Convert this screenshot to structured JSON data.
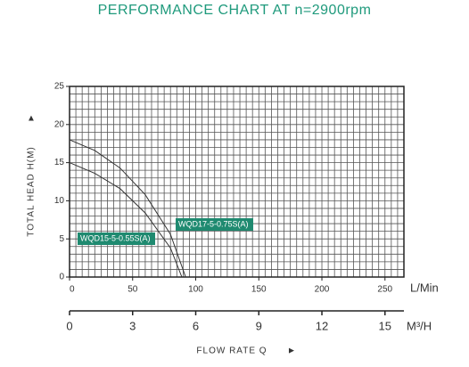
{
  "chart_data": {
    "type": "line",
    "title": "PERFORMANCE CHART AT n=2900rpm",
    "y_label": "TOTAL HEAD H(M)",
    "x_label": "L/Min",
    "x2_label": "M³/H",
    "x2_title": "FLOW RATE Q",
    "xlim": [
      0,
      265
    ],
    "xticks": [
      0,
      50,
      100,
      150,
      200,
      250
    ],
    "ylim": [
      0,
      25
    ],
    "yticks": [
      0,
      5,
      10,
      15,
      20,
      25
    ],
    "x2lim": [
      0,
      15.9
    ],
    "x2ticks": [
      0,
      3,
      6,
      9,
      12,
      15
    ],
    "grid": {
      "x_step": 5,
      "y_step": 1
    },
    "series": [
      {
        "name": "WQD15-5-0.55S(A)",
        "color": "#333333",
        "x": [
          0,
          20,
          40,
          60,
          80,
          89
        ],
        "values": [
          15,
          13.6,
          11.6,
          8.4,
          3.8,
          0
        ]
      },
      {
        "name": "WQD17-5-0.75S(A)",
        "color": "#333333",
        "x": [
          0,
          20,
          40,
          60,
          80,
          92
        ],
        "values": [
          18,
          16.6,
          14.3,
          10.8,
          5.6,
          0
        ]
      }
    ],
    "label_color": "#1f8a70"
  }
}
